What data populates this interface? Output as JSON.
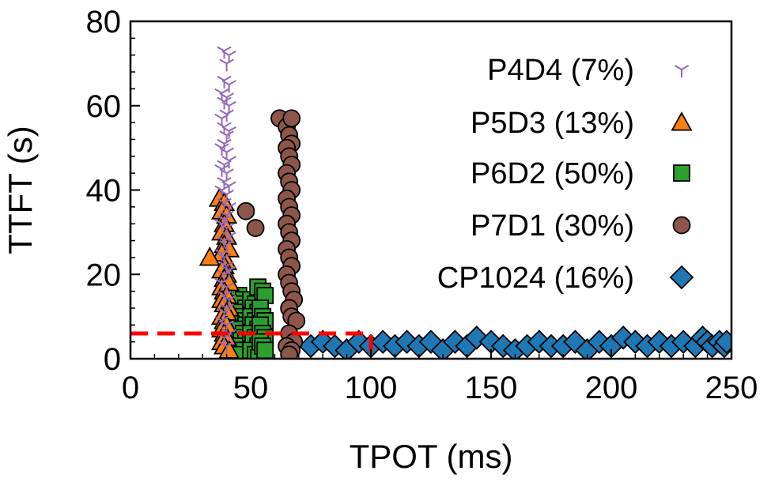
{
  "chart_data": {
    "type": "scatter",
    "title": "",
    "xlabel": "TPOT (ms)",
    "ylabel": "TTFT (s)",
    "xlim": [
      0,
      250
    ],
    "ylim": [
      0,
      80
    ],
    "xticks": [
      0,
      50,
      100,
      150,
      200,
      250
    ],
    "yticks": [
      0,
      20,
      40,
      60,
      80
    ],
    "xtick_labels": [
      "0",
      "50",
      "100",
      "150",
      "200",
      "250"
    ],
    "ytick_labels": [
      "0",
      "20",
      "40",
      "60",
      "80"
    ],
    "grid": false,
    "legend_position": "top-right",
    "slo_box": {
      "tpot_ms": 100,
      "ttft_s": 6
    },
    "series": [
      {
        "name": "P4D4 (7%)",
        "marker": "tri_down",
        "color": "#9467bd",
        "edge": "#9467bd",
        "points": [
          [
            39,
            73
          ],
          [
            41,
            72
          ],
          [
            40,
            70
          ],
          [
            39,
            66
          ],
          [
            41,
            65
          ],
          [
            38,
            63
          ],
          [
            40,
            62
          ],
          [
            39,
            61
          ],
          [
            41,
            60
          ],
          [
            40,
            58
          ],
          [
            38,
            57
          ],
          [
            39,
            55
          ],
          [
            41,
            54
          ],
          [
            40,
            53
          ],
          [
            39,
            51
          ],
          [
            38,
            50
          ],
          [
            40,
            49
          ],
          [
            41,
            47
          ],
          [
            39,
            46
          ],
          [
            38,
            45
          ],
          [
            40,
            44
          ],
          [
            39,
            42
          ],
          [
            41,
            41
          ],
          [
            38,
            40
          ],
          [
            40,
            39
          ],
          [
            39,
            37
          ],
          [
            41,
            36
          ],
          [
            40,
            34
          ],
          [
            39,
            33
          ],
          [
            38,
            32
          ],
          [
            40,
            31
          ],
          [
            41,
            29
          ],
          [
            39,
            28
          ],
          [
            40,
            27
          ],
          [
            38,
            25
          ],
          [
            39,
            24
          ],
          [
            40,
            22
          ],
          [
            41,
            21
          ],
          [
            39,
            20
          ],
          [
            38,
            18
          ],
          [
            40,
            17
          ],
          [
            39,
            15
          ],
          [
            41,
            14
          ],
          [
            40,
            12
          ],
          [
            39,
            11
          ],
          [
            38,
            9
          ],
          [
            40,
            8
          ],
          [
            41,
            6
          ],
          [
            39,
            5
          ],
          [
            40,
            3
          ]
        ]
      },
      {
        "name": "P5D3 (13%)",
        "marker": "triangle",
        "color": "#ff7f0e",
        "edge": "#000000",
        "points": [
          [
            37,
            38
          ],
          [
            39,
            37
          ],
          [
            38,
            35
          ],
          [
            40,
            34
          ],
          [
            39,
            32
          ],
          [
            38,
            30
          ],
          [
            40,
            29
          ],
          [
            39,
            27
          ],
          [
            41,
            26
          ],
          [
            38,
            25
          ],
          [
            33,
            24
          ],
          [
            40,
            23
          ],
          [
            39,
            22
          ],
          [
            38,
            21
          ],
          [
            40,
            20
          ],
          [
            39,
            19
          ],
          [
            41,
            18
          ],
          [
            38,
            17
          ],
          [
            39,
            16
          ],
          [
            40,
            15
          ],
          [
            38,
            14
          ],
          [
            39,
            13
          ],
          [
            41,
            12
          ],
          [
            40,
            11
          ],
          [
            38,
            10
          ],
          [
            39,
            9
          ],
          [
            40,
            8
          ],
          [
            38,
            7
          ],
          [
            39,
            6
          ],
          [
            40,
            5
          ],
          [
            38,
            4
          ],
          [
            39,
            3
          ],
          [
            41,
            2
          ]
        ]
      },
      {
        "name": "P6D2 (50%)",
        "marker": "square",
        "color": "#2ca02c",
        "edge": "#000000",
        "points": [
          [
            45,
            15
          ],
          [
            47,
            14
          ],
          [
            46,
            13
          ],
          [
            48,
            12
          ],
          [
            45,
            11
          ],
          [
            47,
            10
          ],
          [
            46,
            9
          ],
          [
            48,
            8
          ],
          [
            45,
            7
          ],
          [
            47,
            6
          ],
          [
            46,
            5
          ],
          [
            48,
            4
          ],
          [
            45,
            3
          ],
          [
            47,
            2
          ],
          [
            46,
            1
          ],
          [
            50,
            14
          ],
          [
            52,
            13
          ],
          [
            51,
            12
          ],
          [
            53,
            11
          ],
          [
            50,
            10
          ],
          [
            52,
            9
          ],
          [
            51,
            8
          ],
          [
            53,
            7
          ],
          [
            50,
            6
          ],
          [
            52,
            5
          ],
          [
            51,
            4
          ],
          [
            53,
            3
          ],
          [
            50,
            2
          ],
          [
            52,
            1
          ],
          [
            53,
            17
          ],
          [
            55,
            16
          ],
          [
            56,
            15
          ],
          [
            54,
            12
          ],
          [
            55,
            10
          ],
          [
            56,
            9
          ],
          [
            54,
            8
          ],
          [
            55,
            6
          ],
          [
            56,
            5
          ],
          [
            54,
            4
          ],
          [
            55,
            3
          ],
          [
            56,
            2
          ]
        ]
      },
      {
        "name": "P7D1 (30%)",
        "marker": "circle",
        "color": "#8c564b",
        "edge": "#000000",
        "points": [
          [
            62,
            57
          ],
          [
            65,
            55
          ],
          [
            67,
            57
          ],
          [
            66,
            53
          ],
          [
            67,
            51
          ],
          [
            65,
            50
          ],
          [
            66,
            48
          ],
          [
            67,
            46
          ],
          [
            65,
            44
          ],
          [
            66,
            42
          ],
          [
            67,
            40
          ],
          [
            65,
            38
          ],
          [
            66,
            36
          ],
          [
            67,
            34
          ],
          [
            65,
            32
          ],
          [
            66,
            30
          ],
          [
            67,
            28
          ],
          [
            65,
            26
          ],
          [
            66,
            24
          ],
          [
            67,
            22
          ],
          [
            65,
            20
          ],
          [
            66,
            18
          ],
          [
            67,
            16
          ],
          [
            68,
            14
          ],
          [
            66,
            12
          ],
          [
            67,
            10
          ],
          [
            69,
            9
          ],
          [
            66,
            6
          ],
          [
            68,
            4
          ],
          [
            65,
            3
          ],
          [
            67,
            2
          ],
          [
            66,
            1
          ],
          [
            48,
            35
          ],
          [
            52,
            31
          ]
        ]
      },
      {
        "name": "CP1024 (16%)",
        "marker": "diamond",
        "color": "#1f77b4",
        "edge": "#000000",
        "points": [
          [
            75,
            3
          ],
          [
            80,
            4
          ],
          [
            85,
            3
          ],
          [
            90,
            2
          ],
          [
            95,
            4
          ],
          [
            100,
            3
          ],
          [
            105,
            4
          ],
          [
            110,
            3
          ],
          [
            115,
            4
          ],
          [
            120,
            3
          ],
          [
            125,
            4
          ],
          [
            130,
            2
          ],
          [
            135,
            4
          ],
          [
            140,
            3
          ],
          [
            144,
            5
          ],
          [
            150,
            4
          ],
          [
            155,
            3
          ],
          [
            160,
            2
          ],
          [
            165,
            3
          ],
          [
            170,
            4
          ],
          [
            175,
            3
          ],
          [
            180,
            3
          ],
          [
            185,
            4
          ],
          [
            190,
            2
          ],
          [
            195,
            4
          ],
          [
            200,
            3
          ],
          [
            205,
            5
          ],
          [
            210,
            4
          ],
          [
            215,
            3
          ],
          [
            220,
            4
          ],
          [
            225,
            3
          ],
          [
            230,
            4
          ],
          [
            235,
            3
          ],
          [
            238,
            5
          ],
          [
            240,
            4
          ],
          [
            242,
            3
          ],
          [
            245,
            4
          ],
          [
            247,
            3
          ],
          [
            248,
            4
          ]
        ]
      }
    ]
  }
}
